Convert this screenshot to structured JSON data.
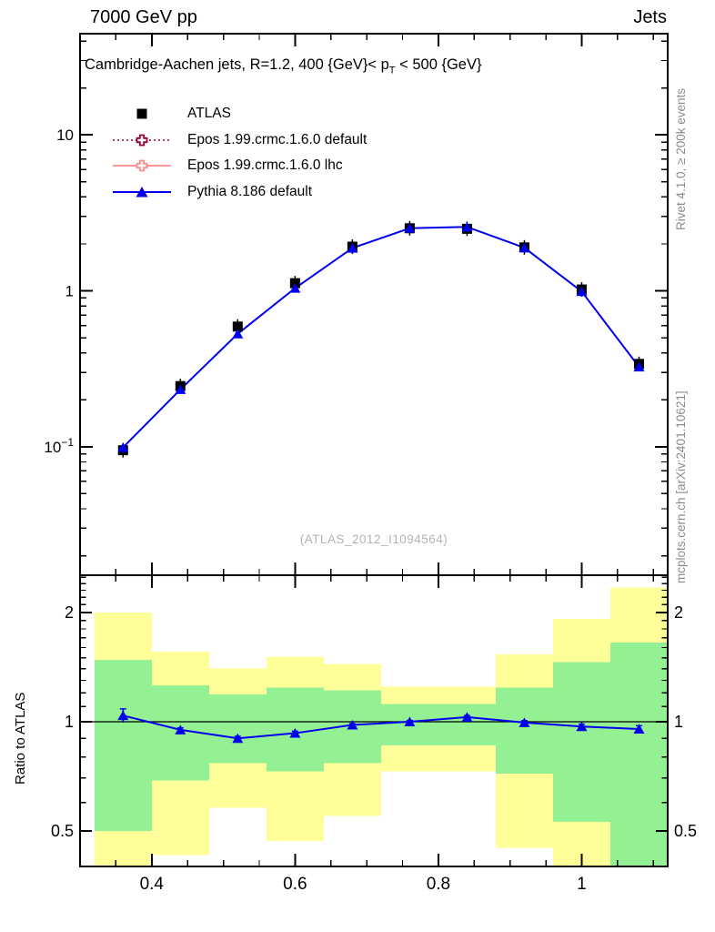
{
  "header": {
    "left": "7000 GeV pp",
    "right": "Jets"
  },
  "plot_title": {
    "pre": "Cambridge-Aachen jets, R=1.2,  400 {GeV}< p",
    "sub": "T",
    "post": " < 500 {GeV}"
  },
  "watermark": "(ATLAS_2012_I1094564)",
  "side_text_top": "Rivet 4.1.0, ≥ 200k events",
  "side_text_bottom": "mcplots.cern.ch [arXiv:2401.10621]",
  "colors": {
    "atlas_black": "#000000",
    "epos_default_maroon": "#990033",
    "epos_lhc_salmon": "#ff8888",
    "pythia_blue": "#0000ee",
    "band_yellow": "#ffff99",
    "band_green": "#93f093",
    "frame_black": "#000000",
    "gray_text": "#8c8c8c",
    "watermark_gray": "#b3b3b3"
  },
  "chart_data": {
    "type": "line",
    "title": "Cambridge-Aachen jets, R=1.2,  400 {GeV}< pT < 500 {GeV}",
    "xlabel": "",
    "x": [
      0.36,
      0.44,
      0.52,
      0.6,
      0.68,
      0.76,
      0.84,
      0.92,
      1.0,
      1.08
    ],
    "bin_edges": [
      0.32,
      0.4,
      0.48,
      0.56,
      0.64,
      0.72,
      0.8,
      0.88,
      0.96,
      1.04,
      1.12
    ],
    "xlim": [
      0.3,
      1.12
    ],
    "xticks": {
      "major": [
        {
          "v": 0.4,
          "label": "0.4"
        },
        {
          "v": 0.6,
          "label": "0.6"
        },
        {
          "v": 0.8,
          "label": "0.8"
        },
        {
          "v": 1.0,
          "label": "1"
        }
      ],
      "minor_step": 0.05,
      "minor_range": [
        0.35,
        1.1
      ]
    },
    "main": {
      "yscale": "log",
      "ylim": [
        0.015,
        44.6
      ],
      "grid": false,
      "legend_position": "upper-left",
      "yticks": [
        {
          "v": 10,
          "base": "10",
          "sup": ""
        },
        {
          "v": 1,
          "base": "1",
          "sup": ""
        },
        {
          "v": 0.1,
          "base": "10",
          "sup": "−1"
        }
      ],
      "series": [
        {
          "name": "ATLAS",
          "marker": "square",
          "line": "none",
          "values": [
            0.095,
            0.245,
            0.59,
            1.12,
            1.92,
            2.52,
            2.5,
            1.9,
            1.02,
            0.34
          ]
        },
        {
          "name": "Epos 1.99.crmc.1.6.0 default",
          "marker": "open-cross",
          "line": "dotted",
          "values": []
        },
        {
          "name": "Epos 1.99.crmc.1.6.0 lhc",
          "marker": "open-cross",
          "line": "solid",
          "values": []
        },
        {
          "name": "Pythia 8.186 default",
          "marker": "triangle",
          "line": "solid",
          "values": [
            0.099,
            0.233,
            0.53,
            1.04,
            1.88,
            2.52,
            2.57,
            1.89,
            0.99,
            0.325
          ]
        }
      ]
    },
    "ratio": {
      "ylabel": "Ratio to ATLAS",
      "yscale": "log",
      "ylim": [
        0.3997,
        2.53
      ],
      "yticks": [
        {
          "v": 2,
          "label": "2"
        },
        {
          "v": 1,
          "label": "1"
        },
        {
          "v": 0.5,
          "label": "0.5"
        }
      ],
      "reference_line": 1,
      "bands": {
        "yellow_lo": [
          0.38,
          0.43,
          0.58,
          0.47,
          0.55,
          0.73,
          0.73,
          0.45,
          0.38,
          0.38
        ],
        "yellow_hi": [
          2.0,
          1.56,
          1.4,
          1.51,
          1.44,
          1.25,
          1.25,
          1.53,
          1.92,
          2.34
        ],
        "green_lo": [
          0.5,
          0.69,
          0.77,
          0.73,
          0.77,
          0.86,
          0.86,
          0.72,
          0.53,
          0.38
        ],
        "green_hi": [
          1.48,
          1.26,
          1.19,
          1.24,
          1.22,
          1.12,
          1.12,
          1.24,
          1.46,
          1.65
        ]
      },
      "pythia_ratio": [
        1.04,
        0.95,
        0.9,
        0.93,
        0.98,
        1.0,
        1.03,
        0.995,
        0.97,
        0.955
      ],
      "pythia_ratio_err": [
        0.045,
        0.012,
        0.012,
        0.012,
        0.008,
        0.008,
        0.01,
        0.012,
        0.015,
        0.02
      ]
    }
  }
}
